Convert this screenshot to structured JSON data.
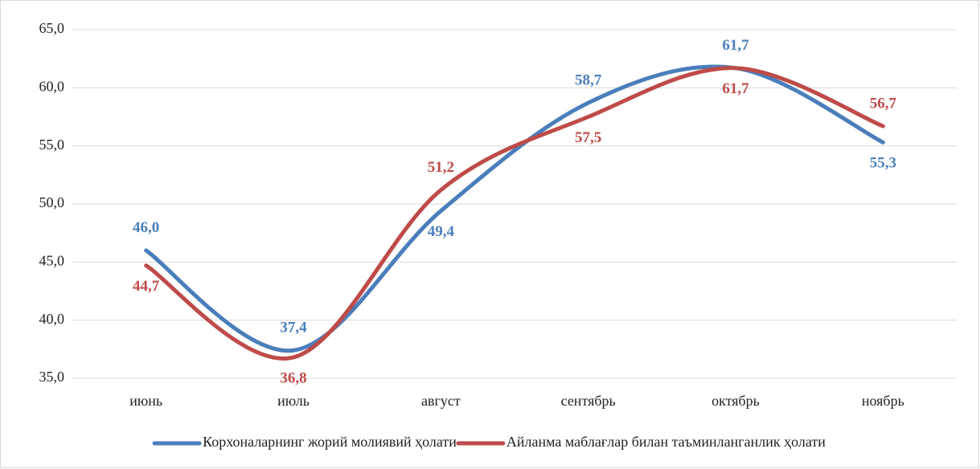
{
  "chart_data": {
    "type": "line",
    "categories": [
      "июнь",
      "июль",
      "август",
      "сентябрь",
      "октябрь",
      "ноябрь"
    ],
    "series": [
      {
        "name": "Корхоналарнинг жорий молиявий ҳолати",
        "color": "#4a7ebb",
        "values": [
          46.0,
          37.4,
          49.4,
          58.7,
          61.7,
          55.3
        ],
        "value_labels": [
          "46,0",
          "37,4",
          "49,4",
          "58,7",
          "61,7",
          "55,3"
        ]
      },
      {
        "name": "Айланма маблағлар билан таъминланганлик ҳолати",
        "color": "#be4b48",
        "values": [
          44.7,
          36.8,
          51.2,
          57.5,
          61.7,
          56.7
        ],
        "value_labels": [
          "44,7",
          "36,8",
          "51,2",
          "57,5",
          "61,7",
          "56,7"
        ]
      }
    ],
    "ylim": [
      35,
      65
    ],
    "yticks": [
      {
        "value": 35,
        "label": "35,0"
      },
      {
        "value": 40,
        "label": "40,0"
      },
      {
        "value": 45,
        "label": "45,0"
      },
      {
        "value": 50,
        "label": "50,0"
      },
      {
        "value": 55,
        "label": "55,0"
      },
      {
        "value": 60,
        "label": "60,0"
      },
      {
        "value": 65,
        "label": "65,0"
      }
    ],
    "grid": true,
    "smooth": true,
    "legend": "bottom"
  }
}
